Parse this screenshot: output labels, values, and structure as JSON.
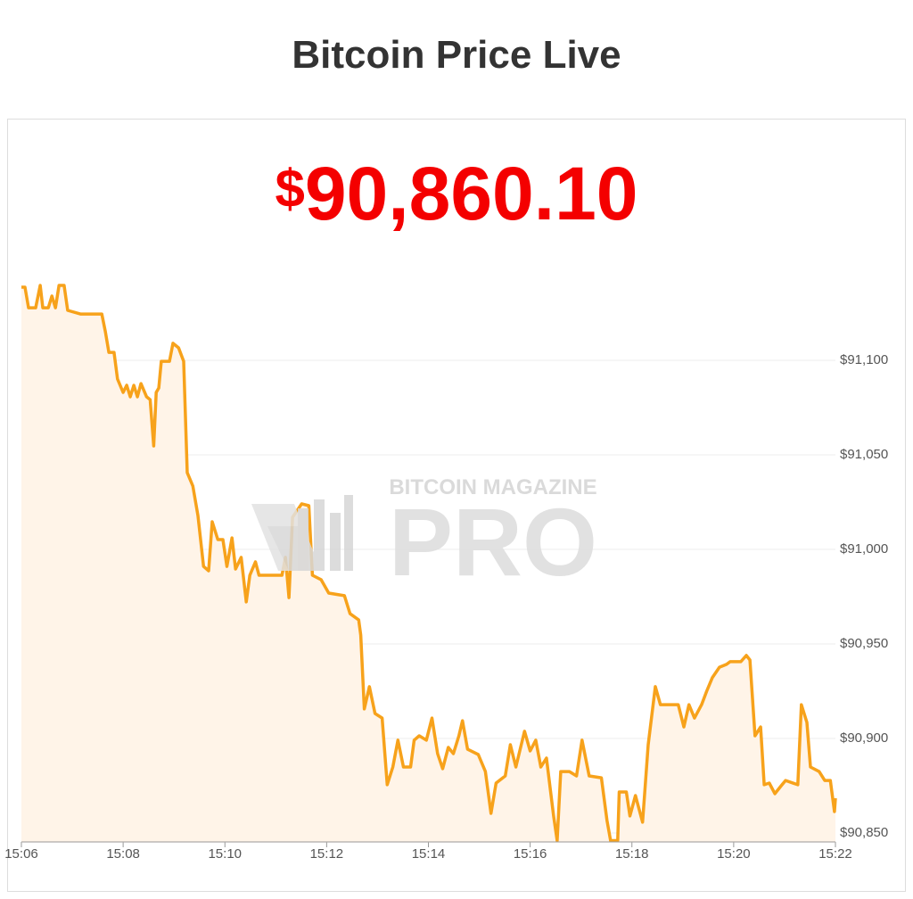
{
  "header": {
    "title": "Bitcoin Price Live"
  },
  "price": {
    "currency": "$",
    "amount": "90,860.10"
  },
  "watermark": {
    "top": "BITCOIN MAGAZINE",
    "bottom": "PRO"
  },
  "chart_data": {
    "type": "line",
    "x": [
      906,
      906.07,
      906.14,
      906.28,
      906.37,
      906.42,
      906.53,
      906.6,
      906.67,
      906.74,
      906.84,
      906.91,
      907.16,
      907.58,
      907.65,
      907.72,
      907.82,
      907.89,
      908,
      908.07,
      908.14,
      908.21,
      908.28,
      908.35,
      908.46,
      908.53,
      908.6,
      908.65,
      908.7,
      908.75,
      908.91,
      908.98,
      909.09,
      909.19,
      909.26,
      909.37,
      909.47,
      909.58,
      909.68,
      909.75,
      909.86,
      909.96,
      910.04,
      910.14,
      910.21,
      910.32,
      910.42,
      910.49,
      910.6,
      910.67,
      911.12,
      911.19,
      911.26,
      911.33,
      911.51,
      911.65,
      911.72,
      911.89,
      912.04,
      912.35,
      912.46,
      912.63,
      912.67,
      912.74,
      912.84,
      912.95,
      913.09,
      913.19,
      913.3,
      913.4,
      913.51,
      913.65,
      913.72,
      913.82,
      913.96,
      914.07,
      914.18,
      914.28,
      914.39,
      914.49,
      914.6,
      914.67,
      914.77,
      914.98,
      915.12,
      915.23,
      915.33,
      915.51,
      915.61,
      915.72,
      915.89,
      916,
      916.11,
      916.21,
      916.32,
      916.46,
      916.53,
      916.6,
      916.77,
      916.91,
      917.02,
      917.16,
      917.4,
      917.51,
      917.58,
      917.72,
      917.75,
      917.89,
      917.96,
      918.07,
      918.21,
      918.32,
      918.46,
      918.56,
      918.91,
      919.02,
      919.12,
      919.23,
      919.37,
      919.47,
      919.58,
      919.72,
      919.86,
      919.93,
      920.14,
      920.25,
      920.32,
      920.42,
      920.53,
      920.6,
      920.7,
      920.81,
      920.95,
      921.02,
      921.26,
      921.33,
      921.44,
      921.51,
      921.68,
      921.79,
      921.9,
      921.98,
      922
    ],
    "series": [
      {
        "color": "#f7a21b",
        "values": [
          91138.7,
          91138.7,
          91127.8,
          91127.8,
          91139.6,
          91127.8,
          91127.8,
          91134.0,
          91127.8,
          91139.6,
          91139.6,
          91126.4,
          91124.5,
          91124.5,
          91115.1,
          91104.2,
          91104.2,
          91090.1,
          91083.0,
          91086.8,
          91080.7,
          91086.8,
          91080.7,
          91087.7,
          91080.7,
          91079.2,
          91054.7,
          91083.0,
          91085.4,
          91099.5,
          91099.5,
          91109.0,
          91106.6,
          91099.5,
          91040.6,
          91033.5,
          91017.9,
          90991.0,
          90988.7,
          91014.6,
          91005.2,
          91005.2,
          90991.0,
          91006.1,
          90989.6,
          90995.8,
          90972.2,
          90986.3,
          90993.4,
          90986.3,
          90986.3,
          90995.8,
          90974.5,
          91017.0,
          91024.1,
          91023.1,
          90986.3,
          90984.0,
          90976.9,
          90975.5,
          90966.0,
          90962.7,
          90954.7,
          90915.6,
          90927.4,
          90913.2,
          90910.8,
          90875.5,
          90884.9,
          90899.1,
          90884.9,
          90884.9,
          90899.1,
          90901.4,
          90899.1,
          90910.8,
          90892.0,
          90884.0,
          90895.3,
          90892.0,
          90901.4,
          90909.4,
          90894.3,
          90891.5,
          90882.5,
          90860.4,
          90876.4,
          90880.2,
          90896.7,
          90884.9,
          90903.8,
          90893.4,
          90899.1,
          90884.9,
          90889.6,
          90859.0,
          90846,
          90882.5,
          90882.5,
          90880.2,
          90899.1,
          90880.2,
          90879.2,
          90856.6,
          90846,
          90846,
          90871.7,
          90871.7,
          90859.0,
          90869.8,
          90855.7,
          90896.7,
          90927.4,
          90917.9,
          90917.9,
          90906.1,
          90917.9,
          90910.8,
          90917.9,
          90925.0,
          90932.1,
          90937.7,
          90939.2,
          90940.6,
          90940.6,
          90943.9,
          90941.5,
          90901.4,
          90906.1,
          90875.5,
          90876.4,
          90870.8,
          90875.5,
          90877.8,
          90875.5,
          90917.9,
          90908.5,
          90884.9,
          90882.5,
          90877.8,
          90877.8,
          90861.3,
          90868.4
        ]
      }
    ],
    "xlim": [
      906,
      922
    ],
    "xticks": [
      {
        "value": 906,
        "label": "15:06"
      },
      {
        "value": 908,
        "label": "15:08"
      },
      {
        "value": 910,
        "label": "15:10"
      },
      {
        "value": 912,
        "label": "15:12"
      },
      {
        "value": 914,
        "label": "15:14"
      },
      {
        "value": 916,
        "label": "15:16"
      },
      {
        "value": 918,
        "label": "15:18"
      },
      {
        "value": 920,
        "label": "15:20"
      },
      {
        "value": 922,
        "label": "15:22"
      }
    ],
    "ylim": [
      90845,
      91150
    ],
    "yticks": [
      {
        "value": 90850,
        "label": "$90,850"
      },
      {
        "value": 90900,
        "label": "$90,900"
      },
      {
        "value": 90950,
        "label": "$90,950"
      },
      {
        "value": 91000,
        "label": "$91,000"
      },
      {
        "value": 91050,
        "label": "$91,050"
      },
      {
        "value": 91100,
        "label": "$91,100"
      }
    ],
    "grid": true,
    "fill": "#fff4e8"
  }
}
